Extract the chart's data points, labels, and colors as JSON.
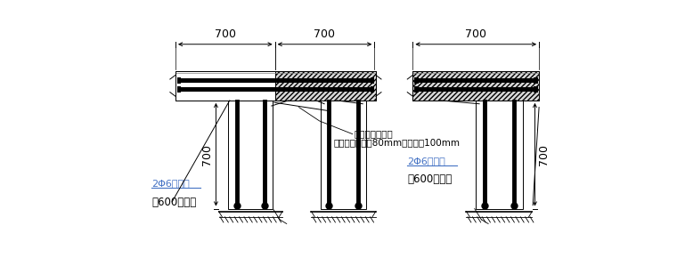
{
  "bg": "#ffffff",
  "lc": "#000000",
  "blue": "#4472c4",
  "ann1": "采用结构胶植筋",
  "ann2": "拉结筋植入深度80mm，配筋带100mm",
  "lbl_l1": "2Φ6沿墙高",
  "lbl_l2": "每600设一道",
  "lbl_r1": "2Φ6沿墙高",
  "lbl_r2": "每600设一道",
  "d700": "700",
  "note_fontsize": 7.5,
  "dim_fontsize": 9,
  "lbl_fontsize": 8
}
